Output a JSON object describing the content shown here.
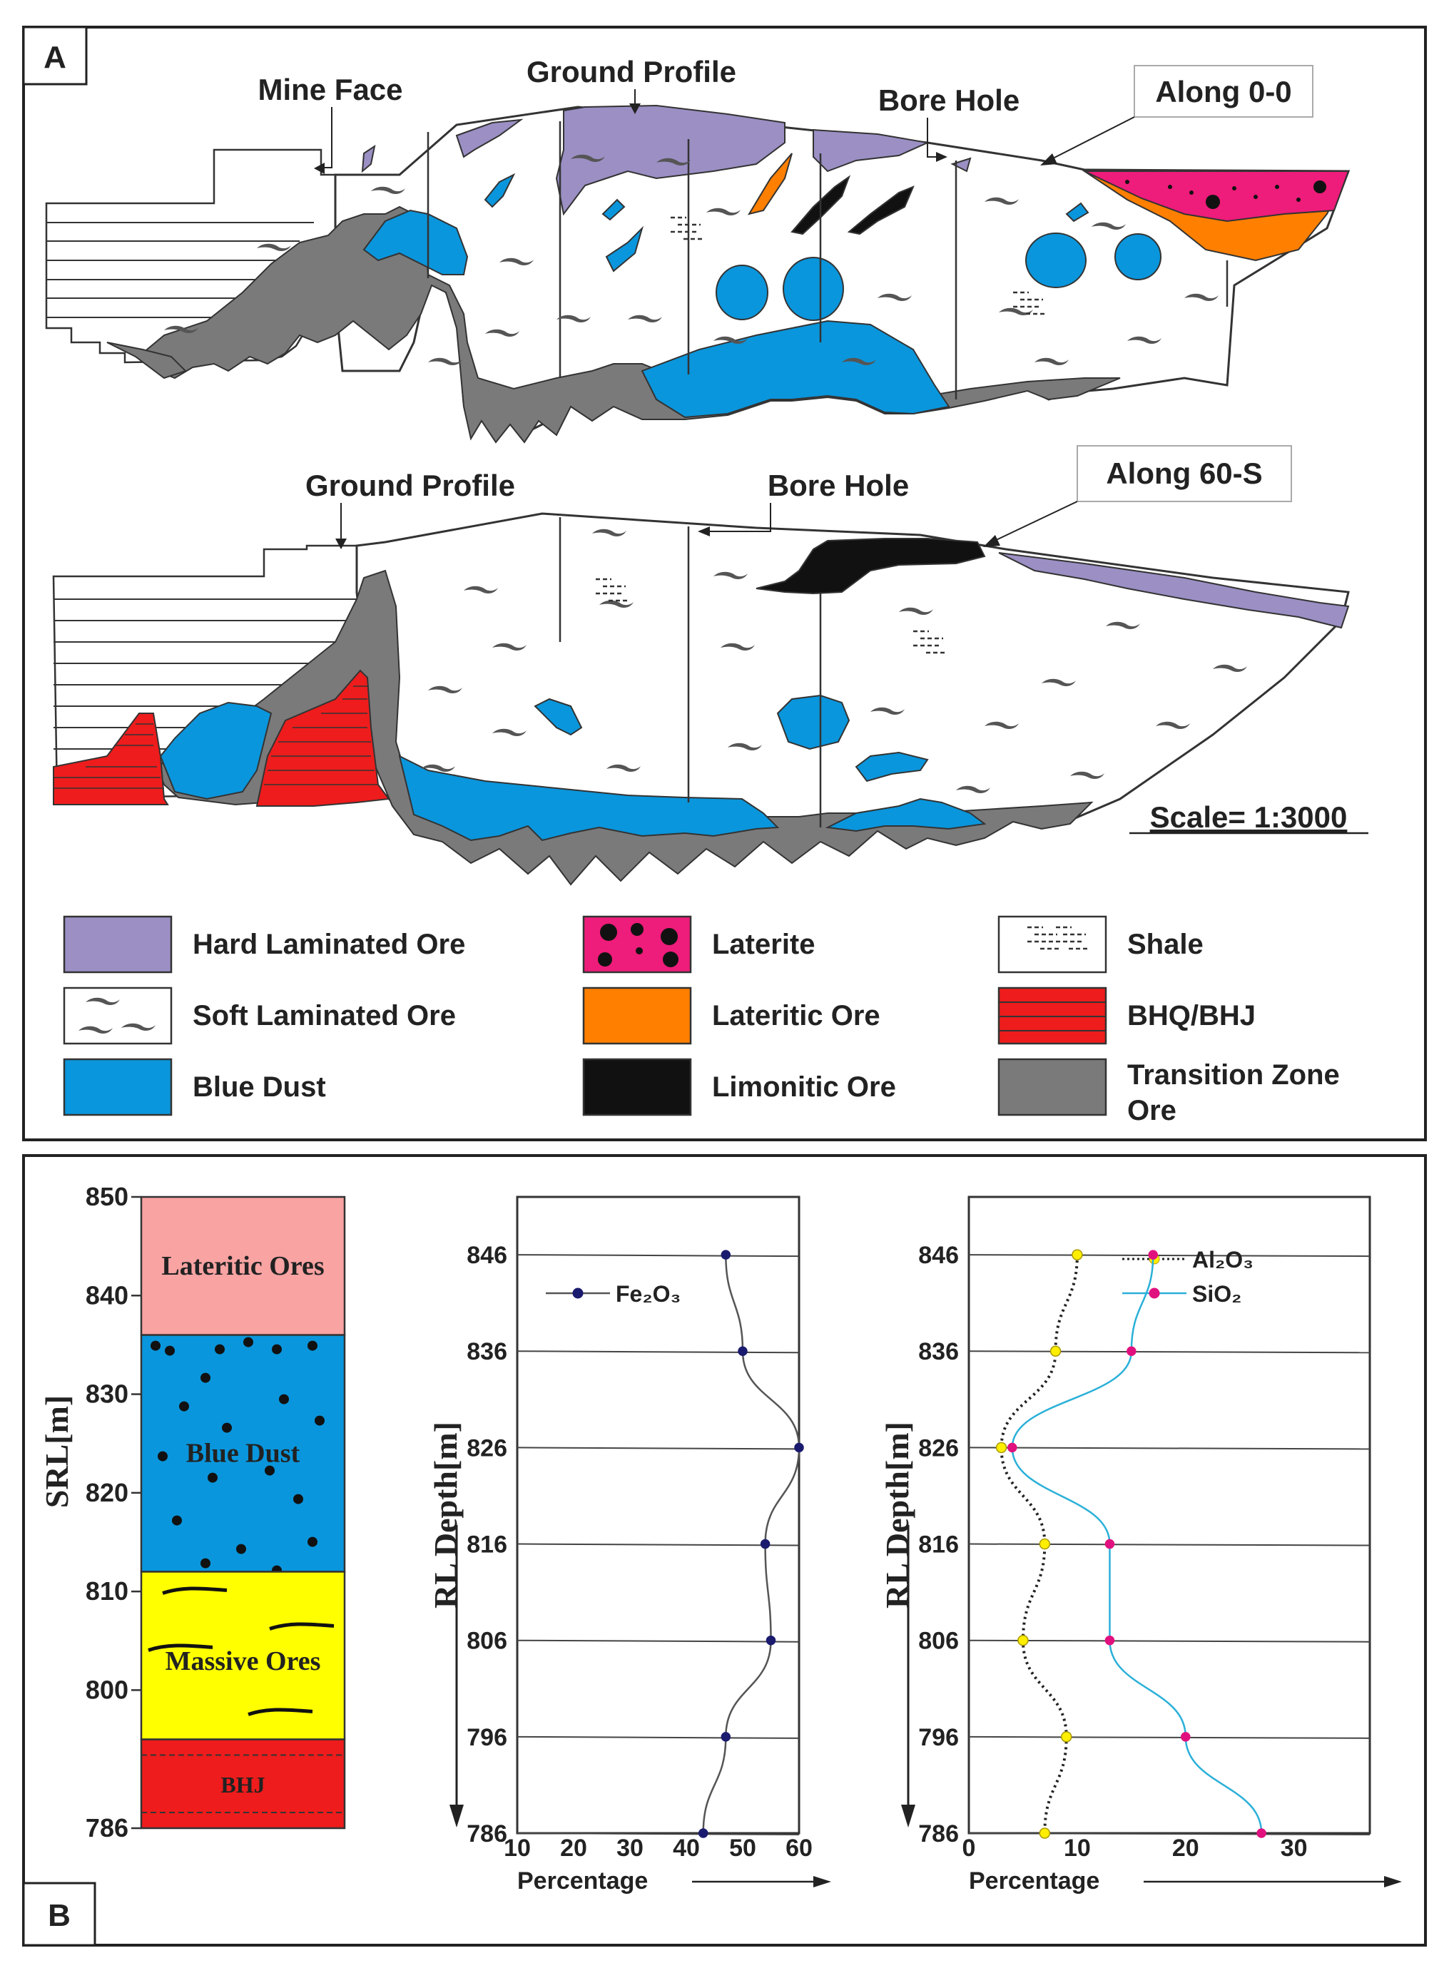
{
  "panel_a": {
    "tag": "A",
    "section1": {
      "labels": {
        "mine_face": "Mine Face",
        "ground_profile": "Ground Profile",
        "bore_hole": "Bore Hole",
        "along": "Along 0-0"
      }
    },
    "section2": {
      "labels": {
        "ground_profile": "Ground Profile",
        "bore_hole": "Bore Hole",
        "along": "Along 60-S"
      }
    },
    "scale": "Scale= 1:3000",
    "legend": [
      {
        "label": "Hard Laminated Ore",
        "color": "#9b8fc4"
      },
      {
        "label": "Soft Laminated Ore",
        "color": "#ffffff"
      },
      {
        "label": "Blue Dust",
        "color": "#0a96dc"
      },
      {
        "label": "Laterite",
        "color": "#ee1c7a"
      },
      {
        "label": "Lateritic Ore",
        "color": "#ff7f00"
      },
      {
        "label": "Limonitic Ore",
        "color": "#111111"
      },
      {
        "label": "Shale",
        "color": "#ffffff"
      },
      {
        "label": "BHQ/BHJ",
        "color": "#ee1c1c"
      },
      {
        "label": "Transition Zone",
        "label2": "Ore",
        "color": "#7a7a7a"
      }
    ]
  },
  "panel_b": {
    "tag": "B",
    "column": {
      "axis_label": "SRL[m]",
      "ticks": [
        "850",
        "840",
        "830",
        "820",
        "810",
        "800",
        "786"
      ],
      "layers": [
        {
          "label": "Lateritic Ores",
          "from": 850,
          "to": 836,
          "color": "#f9a3a3"
        },
        {
          "label": "Blue Dust",
          "from": 836,
          "to": 812,
          "color": "#0a96dc"
        },
        {
          "label": "Massive Ores",
          "from": 812,
          "to": 795,
          "color": "#ffff00"
        },
        {
          "label": "BHJ",
          "from": 795,
          "to": 786,
          "color": "#ee1c1c"
        }
      ]
    },
    "chart_data": [
      {
        "type": "line",
        "ylabel": "RL Depth[m]",
        "xlabel": "Percentage",
        "x_ticks": [
          "10",
          "20",
          "30",
          "40",
          "50",
          "60"
        ],
        "xlim": [
          10,
          60
        ],
        "depth_ticks": [
          "846",
          "836",
          "826",
          "816",
          "806",
          "796",
          "786"
        ],
        "series": [
          {
            "name": "Fe2O3",
            "color": "#1a1a6e",
            "x": [
              47,
              50,
              60,
              54,
              55,
              47,
              43
            ],
            "depth": [
              846,
              836,
              826,
              816,
              806,
              796,
              786
            ]
          }
        ]
      },
      {
        "type": "line",
        "ylabel": "RL Depth[m]",
        "xlabel": "Percentage",
        "x_ticks": [
          "0",
          "10",
          "20",
          "30"
        ],
        "xlim": [
          0,
          37
        ],
        "depth_ticks": [
          "846",
          "836",
          "826",
          "816",
          "806",
          "796",
          "786"
        ],
        "series": [
          {
            "name": "Al2O3",
            "color": "#ffee00",
            "x": [
              10,
              8,
              3,
              7,
              5,
              9,
              7
            ],
            "depth": [
              846,
              836,
              826,
              816,
              806,
              796,
              786
            ]
          },
          {
            "name": "SiO2",
            "color": "#e0117f",
            "x": [
              17,
              15,
              4,
              13,
              13,
              20,
              27
            ],
            "depth": [
              846,
              836,
              826,
              816,
              806,
              796,
              786
            ]
          }
        ]
      }
    ]
  }
}
